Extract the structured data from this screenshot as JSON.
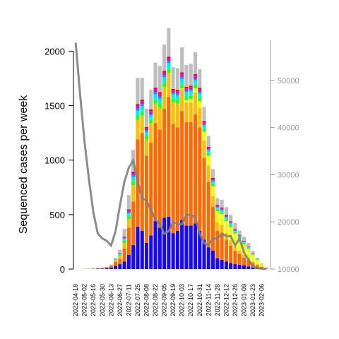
{
  "chart_data": {
    "type": "bar",
    "ylabel": "Sequenced cases per week",
    "ylim": [
      0,
      2100
    ],
    "y2lim": [
      10000,
      58500
    ],
    "y_ticks": [
      0,
      500,
      1000,
      1500,
      2000
    ],
    "y2_ticks": [
      10000,
      20000,
      30000,
      40000,
      50000
    ],
    "grid": false,
    "x_labels": [
      "2022-04-18",
      "2022-05-02",
      "2022-05-16",
      "2022-05-30",
      "2022-06-13",
      "2022-06-27",
      "2022-07-11",
      "2022-07-25",
      "2022-08-08",
      "2022-08-22",
      "2022-09-05",
      "2022-09-19",
      "2022-10-03",
      "2022-10-17",
      "2022-10-31",
      "2022-11-14",
      "2022-11-28",
      "2022-12-12",
      "2022-12-26",
      "2023-01-09",
      "2023-01-23",
      "2023-02-06"
    ],
    "weeks": [
      "2022-04-18",
      "2022-04-25",
      "2022-05-02",
      "2022-05-09",
      "2022-05-16",
      "2022-05-23",
      "2022-05-30",
      "2022-06-06",
      "2022-06-13",
      "2022-06-20",
      "2022-06-27",
      "2022-07-04",
      "2022-07-11",
      "2022-07-18",
      "2022-07-25",
      "2022-08-01",
      "2022-08-08",
      "2022-08-15",
      "2022-08-22",
      "2022-08-29",
      "2022-09-05",
      "2022-09-12",
      "2022-09-19",
      "2022-09-26",
      "2022-10-03",
      "2022-10-10",
      "2022-10-17",
      "2022-10-24",
      "2022-10-31",
      "2022-11-07",
      "2022-11-14",
      "2022-11-21",
      "2022-11-28",
      "2022-12-05",
      "2022-12-12",
      "2022-12-19",
      "2022-12-26",
      "2023-01-02",
      "2023-01-09",
      "2023-01-16",
      "2023-01-23",
      "2023-01-30",
      "2023-02-06",
      "2023-02-13"
    ],
    "series": [
      {
        "color": "#1a0af0",
        "values": [
          0,
          0,
          0,
          0,
          2,
          3,
          5,
          8,
          15,
          30,
          45,
          70,
          130,
          220,
          390,
          350,
          240,
          310,
          440,
          380,
          470,
          480,
          330,
          350,
          450,
          400,
          400,
          420,
          350,
          270,
          200,
          170,
          100,
          85,
          70,
          55,
          45,
          40,
          35,
          25,
          15,
          10,
          5,
          2
        ]
      },
      {
        "color": "#ff6a00",
        "values": [
          0,
          0,
          2,
          3,
          3,
          5,
          5,
          8,
          15,
          35,
          50,
          120,
          250,
          400,
          800,
          900,
          800,
          850,
          900,
          900,
          1000,
          1100,
          1000,
          950,
          1000,
          950,
          950,
          1000,
          950,
          750,
          600,
          400,
          250,
          250,
          200,
          160,
          120,
          100,
          70,
          60,
          40,
          25,
          15,
          8
        ]
      },
      {
        "color": "#ffbf00",
        "values": [
          0,
          0,
          0,
          0,
          0,
          0,
          0,
          2,
          5,
          10,
          25,
          50,
          80,
          150,
          180,
          160,
          150,
          180,
          180,
          200,
          200,
          220,
          200,
          220,
          200,
          180,
          180,
          200,
          180,
          160,
          150,
          100,
          80,
          70,
          60,
          50,
          40,
          30,
          25,
          20,
          15,
          10,
          5,
          2
        ]
      },
      {
        "color": "#f5ff00",
        "values": [
          0,
          0,
          0,
          0,
          0,
          0,
          0,
          0,
          0,
          0,
          0,
          0,
          0,
          0,
          0,
          0,
          0,
          0,
          0,
          0,
          0,
          0,
          0,
          0,
          10,
          20,
          30,
          40,
          60,
          80,
          90,
          90,
          100,
          100,
          110,
          120,
          120,
          110,
          100,
          80,
          60,
          40,
          20,
          5
        ]
      },
      {
        "color": "#2dff00",
        "values": [
          0,
          0,
          0,
          0,
          0,
          0,
          0,
          0,
          2,
          5,
          10,
          20,
          25,
          30,
          30,
          30,
          25,
          25,
          30,
          30,
          35,
          35,
          30,
          30,
          30,
          30,
          30,
          30,
          30,
          25,
          20,
          20,
          15,
          15,
          15,
          15,
          15,
          10,
          10,
          5,
          5,
          5,
          2,
          0
        ]
      },
      {
        "color": "#00ffb3",
        "values": [
          0,
          0,
          0,
          0,
          0,
          0,
          0,
          0,
          0,
          2,
          5,
          10,
          15,
          20,
          25,
          25,
          20,
          20,
          25,
          25,
          25,
          25,
          20,
          20,
          25,
          20,
          20,
          20,
          20,
          15,
          15,
          10,
          10,
          10,
          10,
          10,
          5,
          5,
          5,
          5,
          2,
          2,
          0,
          0
        ]
      },
      {
        "color": "#00e5ff",
        "values": [
          0,
          0,
          0,
          0,
          0,
          0,
          0,
          0,
          0,
          2,
          5,
          10,
          15,
          25,
          30,
          30,
          25,
          25,
          30,
          30,
          30,
          30,
          25,
          25,
          30,
          25,
          25,
          25,
          25,
          20,
          15,
          15,
          10,
          10,
          10,
          10,
          5,
          5,
          5,
          5,
          2,
          2,
          0,
          0
        ]
      },
      {
        "color": "#0099ff",
        "values": [
          0,
          0,
          0,
          0,
          0,
          0,
          0,
          0,
          0,
          2,
          3,
          5,
          10,
          15,
          20,
          20,
          15,
          15,
          20,
          20,
          20,
          20,
          15,
          15,
          20,
          15,
          15,
          15,
          15,
          10,
          10,
          10,
          8,
          8,
          5,
          5,
          5,
          3,
          3,
          2,
          2,
          0,
          0,
          0
        ]
      },
      {
        "color": "#c800ff",
        "values": [
          0,
          0,
          0,
          0,
          0,
          0,
          0,
          0,
          0,
          1,
          2,
          5,
          8,
          10,
          15,
          15,
          10,
          15,
          15,
          15,
          15,
          15,
          10,
          10,
          15,
          10,
          10,
          15,
          10,
          10,
          8,
          8,
          5,
          5,
          5,
          5,
          5,
          3,
          3,
          2,
          2,
          0,
          0,
          0
        ]
      },
      {
        "color": "#ff00c8",
        "values": [
          0,
          0,
          0,
          0,
          0,
          0,
          0,
          0,
          0,
          1,
          2,
          4,
          6,
          8,
          10,
          10,
          8,
          10,
          10,
          10,
          10,
          10,
          8,
          8,
          10,
          8,
          8,
          10,
          8,
          8,
          5,
          5,
          5,
          5,
          5,
          3,
          3,
          3,
          2,
          2,
          2,
          0,
          0,
          0
        ]
      },
      {
        "color": "#ff0000",
        "values": [
          0,
          0,
          0,
          0,
          0,
          0,
          0,
          0,
          0,
          1,
          2,
          5,
          10,
          15,
          15,
          15,
          10,
          15,
          15,
          15,
          15,
          15,
          15,
          15,
          15,
          15,
          15,
          15,
          15,
          10,
          10,
          10,
          8,
          8,
          8,
          5,
          5,
          5,
          3,
          2,
          2,
          0,
          0,
          0
        ]
      },
      {
        "color": "#bebebe",
        "values": [
          0,
          0,
          0,
          0,
          0,
          0,
          0,
          0,
          5,
          15,
          30,
          70,
          130,
          200,
          240,
          200,
          170,
          180,
          230,
          240,
          240,
          260,
          200,
          200,
          230,
          200,
          200,
          200,
          170,
          130,
          100,
          80,
          60,
          70,
          70,
          60,
          55,
          40,
          35,
          30,
          20,
          10,
          5,
          1
        ]
      }
    ],
    "line": {
      "color": "#7f7f7f",
      "values": [
        58000,
        47000,
        37000,
        29000,
        22000,
        17500,
        16500,
        16000,
        15000,
        18000,
        23500,
        28500,
        31500,
        33000,
        28500,
        25000,
        24500,
        22500,
        20500,
        19500,
        17500,
        18000,
        20000,
        19500,
        19500,
        21500,
        21500,
        21000,
        17500,
        15500,
        15000,
        16500,
        16500,
        17500,
        17000,
        17000,
        15000,
        16500,
        13500,
        12000,
        10500,
        10200,
        10100,
        10000
      ]
    }
  }
}
